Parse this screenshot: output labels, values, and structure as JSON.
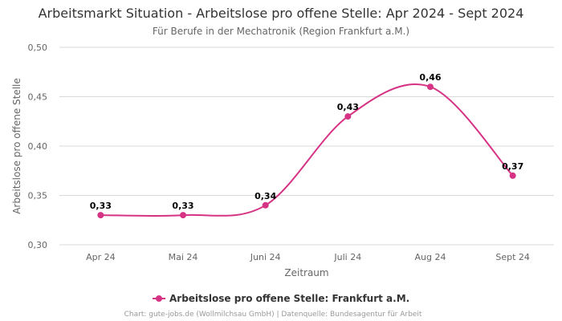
{
  "chart_data": {
    "type": "line",
    "title": "Arbeitsmarkt Situation - Arbeitslose pro offene Stelle: Apr 2024 - Sept 2024",
    "subtitle": "Für Berufe in der Mechatronik (Region Frankfurt a.M.)",
    "xlabel": "Zeitraum",
    "ylabel": "Arbeitslose pro offene Stelle",
    "categories": [
      "Apr 24",
      "Mai 24",
      "Juni 24",
      "Juli 24",
      "Aug 24",
      "Sept 24"
    ],
    "series": [
      {
        "name": "Arbeitslose pro offene Stelle: Frankfurt a.M.",
        "values": [
          0.33,
          0.33,
          0.34,
          0.43,
          0.46,
          0.37
        ],
        "data_labels": [
          "0,33",
          "0,33",
          "0,34",
          "0,43",
          "0,46",
          "0,37"
        ],
        "color": "#d63384"
      }
    ],
    "ylim": [
      0.3,
      0.5
    ],
    "yticks": [
      0.3,
      0.35,
      0.4,
      0.45,
      0.5
    ],
    "ytick_labels": [
      "0,30",
      "0,35",
      "0,40",
      "0,45",
      "0,50"
    ],
    "grid": true,
    "legend_position": "bottom-center",
    "credits": "Chart: gute-jobs.de (Wollmilchsau GmbH) | Datenquelle: Bundesagentur für Arbeit"
  }
}
